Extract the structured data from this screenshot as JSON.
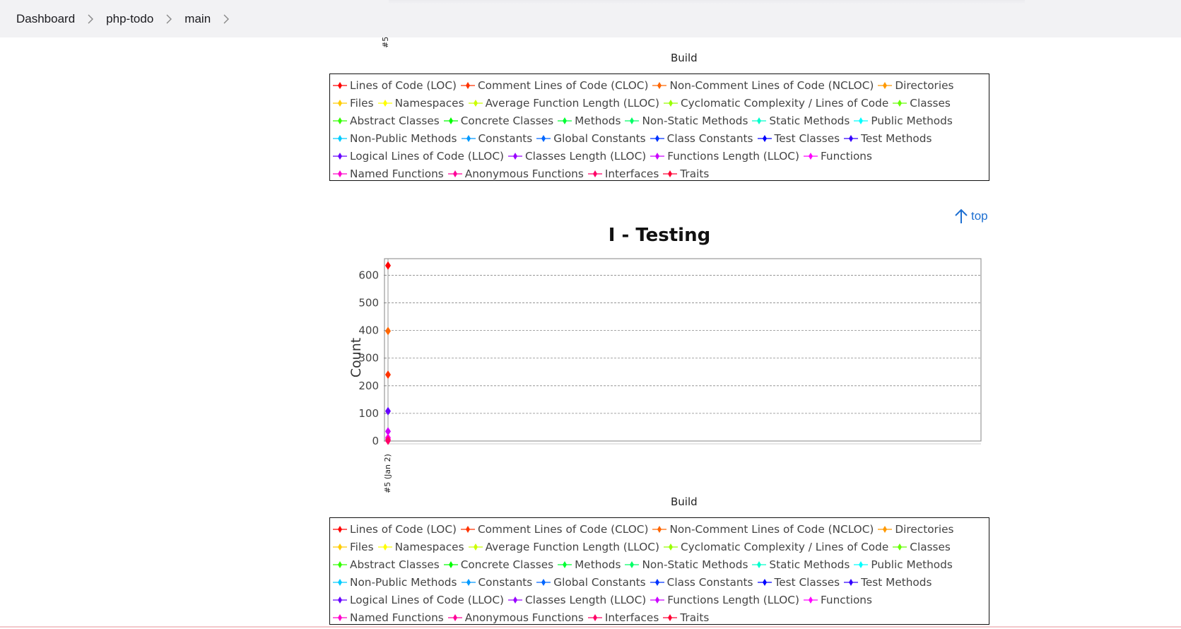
{
  "breadcrumb": {
    "items": [
      "Dashboard",
      "php-todo",
      "main"
    ]
  },
  "top_chart_fragment": {
    "x_tick": "#5",
    "xlabel": "Build"
  },
  "legend_items": [
    {
      "label": "Lines of Code (LOC)",
      "color": "#ff0000"
    },
    {
      "label": "Comment Lines of Code (CLOC)",
      "color": "#ff3300"
    },
    {
      "label": "Non-Comment Lines of Code (NCLOC)",
      "color": "#ff6600"
    },
    {
      "label": "Directories",
      "color": "#ff9900"
    },
    {
      "label": "Files",
      "color": "#ffcc00"
    },
    {
      "label": "Namespaces",
      "color": "#ffff00"
    },
    {
      "label": "Average Function Length (LLOC)",
      "color": "#ccff00"
    },
    {
      "label": "Cyclomatic Complexity / Lines of Code",
      "color": "#99ff00"
    },
    {
      "label": "Classes",
      "color": "#66ff00"
    },
    {
      "label": "Abstract Classes",
      "color": "#33ff00"
    },
    {
      "label": "Concrete Classes",
      "color": "#00ff00"
    },
    {
      "label": "Methods",
      "color": "#00ff33"
    },
    {
      "label": "Non-Static Methods",
      "color": "#00ff66"
    },
    {
      "label": "Static Methods",
      "color": "#00ffcc"
    },
    {
      "label": "Public Methods",
      "color": "#00ffff"
    },
    {
      "label": "Non-Public Methods",
      "color": "#00ccff"
    },
    {
      "label": "Constants",
      "color": "#0099ff"
    },
    {
      "label": "Global Constants",
      "color": "#0066ff"
    },
    {
      "label": "Class Constants",
      "color": "#0033ff"
    },
    {
      "label": "Test Classes",
      "color": "#0000ff"
    },
    {
      "label": "Test Methods",
      "color": "#3300ff"
    },
    {
      "label": "Logical Lines of Code (LLOC)",
      "color": "#6600ff"
    },
    {
      "label": "Classes Length (LLOC)",
      "color": "#9900ff"
    },
    {
      "label": "Functions Length (LLOC)",
      "color": "#cc00ff"
    },
    {
      "label": "Functions",
      "color": "#ff00ff"
    },
    {
      "label": "Named Functions",
      "color": "#ff00cc"
    },
    {
      "label": "Anonymous Functions",
      "color": "#ff0099"
    },
    {
      "label": "Interfaces",
      "color": "#ff0066"
    },
    {
      "label": "Traits",
      "color": "#ff0033"
    }
  ],
  "top_link": {
    "label": "top"
  },
  "chart_data": {
    "type": "line",
    "title": "I - Testing",
    "xlabel": "Build",
    "ylabel": "Count",
    "categories": [
      "#5 (Jan 2)"
    ],
    "ylim": [
      0,
      660
    ],
    "yticks": [
      0,
      100,
      200,
      300,
      400,
      500,
      600
    ],
    "grid": true,
    "legend_position": "bottom",
    "series": [
      {
        "name": "Lines of Code (LOC)",
        "values": [
          635
        ],
        "color": "#ff0000"
      },
      {
        "name": "Non-Comment Lines of Code (NCLOC)",
        "values": [
          398
        ],
        "color": "#ff6600"
      },
      {
        "name": "Comment Lines of Code (CLOC)",
        "values": [
          240
        ],
        "color": "#ff3300"
      },
      {
        "name": "Logical Lines of Code (LLOC)",
        "values": [
          108
        ],
        "color": "#6600ff"
      },
      {
        "name": "Functions Length (LLOC)",
        "values": [
          35
        ],
        "color": "#cc00ff"
      },
      {
        "name": "Functions",
        "values": [
          12
        ],
        "color": "#ff00ff"
      },
      {
        "name": "Anonymous Functions",
        "values": [
          6
        ],
        "color": "#ff0099"
      },
      {
        "name": "Interfaces",
        "values": [
          1
        ],
        "color": "#ff0066"
      }
    ]
  }
}
